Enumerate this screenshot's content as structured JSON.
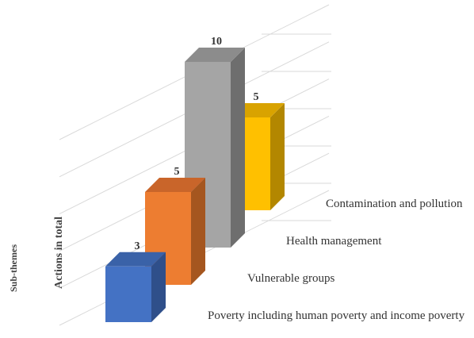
{
  "chart_data": {
    "type": "bar",
    "title": "",
    "xlabel": "Sub-themes",
    "ylabel": "Actions in total",
    "categories": [
      "Poverty including human poverty and income poverty",
      "Vulnerable groups",
      "Health management",
      "Contamination and pollution"
    ],
    "values": [
      3,
      5,
      10,
      5
    ],
    "ylim": [
      0,
      10
    ],
    "grid": true,
    "style": "3d-column",
    "colors": [
      "#4472C4",
      "#ED7D31",
      "#A5A5A5",
      "#FFC000"
    ],
    "side_colors": [
      "#2F4F8A",
      "#A5561F",
      "#6E6E6E",
      "#B38700"
    ],
    "top_colors": [
      "#3A62A8",
      "#C9652A",
      "#8C8C8C",
      "#D9A300"
    ]
  }
}
